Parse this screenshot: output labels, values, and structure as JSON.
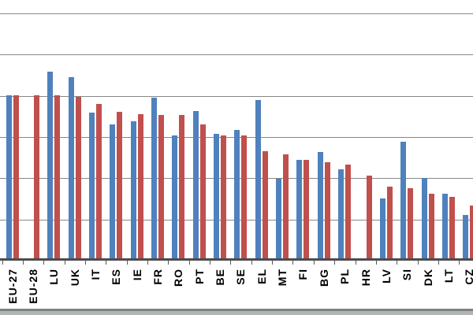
{
  "chart_data": {
    "type": "bar",
    "title": "",
    "subtitle": "",
    "legend": "not visible (chart cropped)",
    "categories": [
      "EU-27",
      "EU-28",
      "LU",
      "UK",
      "IT",
      "ES",
      "IE",
      "FR",
      "RO",
      "PT",
      "BE",
      "SE",
      "EL",
      "MT",
      "FI",
      "BG",
      "PL",
      "HR",
      "LV",
      "SI",
      "DK",
      "LT",
      "CZ"
    ],
    "series": [
      {
        "name": "blue",
        "color": "#4f81bd",
        "values": [
          40.2,
          null,
          45.9,
          44.5,
          36.0,
          33.1,
          33.8,
          39.5,
          30.4,
          36.4,
          30.8,
          31.7,
          39.0,
          19.8,
          24.5,
          26.4,
          22.2,
          null,
          15.2,
          28.9,
          20.1,
          16.3,
          11.1
        ]
      },
      {
        "name": "red",
        "color": "#c0504d",
        "values": [
          40.2,
          40.2,
          40.1,
          39.7,
          38.1,
          36.2,
          35.5,
          35.4,
          35.4,
          33.0,
          30.4,
          30.3,
          26.6,
          25.8,
          24.4,
          23.9,
          23.4,
          20.6,
          18.0,
          17.5,
          16.3,
          15.5,
          13.4
        ]
      }
    ],
    "xlabel": "",
    "ylabel": "",
    "y_axis": {
      "tick_labels_visible": false,
      "gridlines_at": [
        10,
        20,
        30,
        40,
        50,
        60
      ],
      "gridline_interval": 10,
      "ylim": [
        0,
        63
      ]
    },
    "grid": "on",
    "notes": "Top, left and right of chart cropped; no title, legend or axis value labels visible. EU-28 and HR have no blue bar. Values estimated in gridline units (one gridline = 10)."
  },
  "colors": {
    "background": "#ffffff",
    "series_blue": "#4f81bd",
    "series_red": "#c0504d",
    "gridline": "#878787",
    "axis_line": "#4d4d4d",
    "tick": "#595959",
    "label_text": "#000000",
    "bottom_bar_fill": "#b1b5b6",
    "bottom_bar_edge": "#7f8283"
  }
}
